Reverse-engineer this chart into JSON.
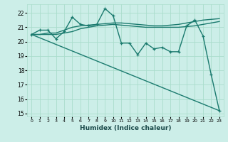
{
  "xlabel": "Humidex (Indice chaleur)",
  "bg_color": "#cceee8",
  "grid_color": "#aaddcc",
  "line_color": "#1a7a6e",
  "xlim": [
    -0.5,
    23.5
  ],
  "ylim": [
    14.8,
    22.6
  ],
  "yticks": [
    15,
    16,
    17,
    18,
    19,
    20,
    21,
    22
  ],
  "xticks": [
    0,
    1,
    2,
    3,
    4,
    5,
    6,
    7,
    8,
    9,
    10,
    11,
    12,
    13,
    14,
    15,
    16,
    17,
    18,
    19,
    20,
    21,
    22,
    23
  ],
  "series": [
    {
      "x": [
        0,
        1,
        2,
        3,
        4,
        5,
        6,
        7,
        8,
        9,
        10,
        11,
        12,
        13,
        14,
        15,
        16,
        17,
        18,
        19,
        20,
        21,
        22,
        23
      ],
      "y": [
        20.5,
        20.8,
        20.8,
        20.2,
        20.7,
        21.7,
        21.2,
        21.1,
        21.2,
        22.3,
        21.8,
        19.9,
        19.9,
        19.1,
        19.9,
        19.5,
        19.6,
        19.3,
        19.3,
        21.1,
        21.5,
        20.4,
        17.7,
        15.2
      ],
      "marker": "+",
      "linestyle": "-",
      "linewidth": 1.0
    },
    {
      "x": [
        0,
        1,
        2,
        3,
        4,
        5,
        6,
        7,
        8,
        9,
        10,
        11,
        12,
        13,
        14,
        15,
        16,
        17,
        18,
        19,
        20,
        21,
        22,
        23
      ],
      "y": [
        20.5,
        20.5,
        20.6,
        20.6,
        20.8,
        21.0,
        21.1,
        21.15,
        21.2,
        21.25,
        21.3,
        21.3,
        21.25,
        21.2,
        21.15,
        21.1,
        21.1,
        21.15,
        21.2,
        21.3,
        21.4,
        21.5,
        21.55,
        21.6
      ],
      "marker": null,
      "linestyle": "-",
      "linewidth": 1.0
    },
    {
      "x": [
        0,
        1,
        2,
        3,
        4,
        5,
        6,
        7,
        8,
        9,
        10,
        11,
        12,
        13,
        14,
        15,
        16,
        17,
        18,
        19,
        20,
        21,
        22,
        23
      ],
      "y": [
        20.5,
        20.5,
        20.5,
        20.5,
        20.6,
        20.7,
        20.9,
        21.0,
        21.1,
        21.15,
        21.2,
        21.15,
        21.1,
        21.05,
        21.0,
        21.0,
        21.0,
        21.0,
        21.0,
        21.05,
        21.1,
        21.2,
        21.3,
        21.4
      ],
      "marker": null,
      "linestyle": "-",
      "linewidth": 1.0
    },
    {
      "x": [
        0,
        23
      ],
      "y": [
        20.5,
        15.2
      ],
      "marker": null,
      "linestyle": "-",
      "linewidth": 1.0
    }
  ]
}
